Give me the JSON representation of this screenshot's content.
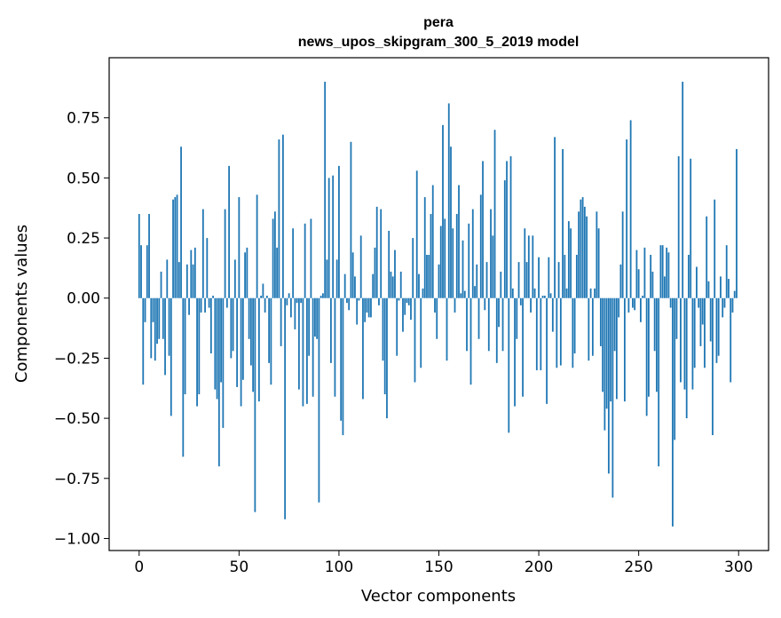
{
  "chart_data": {
    "type": "bar",
    "title_line1": "pera",
    "title_line2": "news_upos_skipgram_300_5_2019 model",
    "xlabel": "Vector components",
    "ylabel": "Components values",
    "xlim": [
      -15,
      315
    ],
    "ylim": [
      -1.05,
      1.0
    ],
    "xticks": [
      0,
      50,
      100,
      150,
      200,
      250,
      300
    ],
    "xtick_labels": [
      "0",
      "50",
      "100",
      "150",
      "200",
      "250",
      "300"
    ],
    "yticks": [
      -1.0,
      -0.75,
      -0.5,
      -0.25,
      0.0,
      0.25,
      0.5,
      0.75
    ],
    "ytick_labels": [
      "−1.00",
      "−0.75",
      "−0.50",
      "−0.25",
      "0.00",
      "0.25",
      "0.50",
      "0.75"
    ],
    "bar_color": "#1f77b4",
    "values": [
      0.35,
      0.22,
      -0.36,
      -0.1,
      0.22,
      0.35,
      -0.25,
      -0.1,
      -0.26,
      -0.19,
      -0.17,
      0.11,
      -0.17,
      -0.32,
      0.16,
      -0.24,
      -0.49,
      0.41,
      0.42,
      0.43,
      0.15,
      0.63,
      -0.66,
      -0.4,
      0.14,
      -0.07,
      0.2,
      0.14,
      0.21,
      -0.45,
      -0.4,
      -0.06,
      0.37,
      -0.06,
      0.25,
      -0.04,
      -0.23,
      0.01,
      -0.38,
      -0.42,
      -0.7,
      -0.35,
      -0.54,
      0.37,
      -0.04,
      0.55,
      -0.25,
      -0.22,
      0.16,
      -0.37,
      0.42,
      -0.45,
      -0.34,
      0.19,
      0.21,
      -0.17,
      -0.28,
      -0.39,
      -0.89,
      0.43,
      -0.43,
      0.01,
      0.06,
      -0.06,
      0.01,
      -0.27,
      -0.36,
      0.33,
      0.36,
      0.21,
      0.66,
      -0.2,
      0.68,
      -0.92,
      -0.03,
      0.02,
      -0.08,
      0.29,
      -0.13,
      -0.02,
      -0.38,
      -0.02,
      -0.45,
      0.31,
      -0.44,
      -0.24,
      0.33,
      -0.41,
      -0.16,
      -0.17,
      -0.85,
      0.01,
      0.02,
      0.9,
      0.16,
      0.5,
      -0.27,
      0.51,
      -0.41,
      0.16,
      0.55,
      -0.51,
      -0.57,
      0.1,
      -0.02,
      -0.05,
      0.65,
      0.19,
      0.09,
      -0.11,
      -0.01,
      0.26,
      -0.42,
      -0.1,
      -0.06,
      -0.08,
      -0.08,
      0.1,
      0.21,
      0.38,
      -0.03,
      0.37,
      -0.26,
      -0.4,
      -0.5,
      0.28,
      0.11,
      0.09,
      0.2,
      -0.24,
      -0.01,
      0.11,
      -0.14,
      -0.07,
      -0.02,
      -0.03,
      -0.09,
      0.25,
      -0.35,
      0.53,
      0.1,
      -0.29,
      0.04,
      0.42,
      0.18,
      0.18,
      0.35,
      0.47,
      -0.06,
      -0.17,
      0.14,
      0.3,
      0.72,
      0.33,
      -0.26,
      0.81,
      0.63,
      0.29,
      -0.06,
      0.35,
      0.47,
      0.02,
      0.24,
      0.03,
      -0.22,
      0.31,
      -0.36,
      0.37,
      0.05,
      0.14,
      -0.17,
      0.43,
      0.57,
      -0.05,
      0.15,
      -0.22,
      0.37,
      0.26,
      0.7,
      -0.27,
      -0.12,
      0.11,
      -0.22,
      0.49,
      0.57,
      -0.56,
      0.59,
      0.04,
      -0.45,
      -0.17,
      0.15,
      -0.03,
      -0.41,
      0.29,
      0.15,
      0.26,
      -0.06,
      0.26,
      0.04,
      -0.3,
      0.17,
      -0.3,
      0.01,
      0.01,
      -0.44,
      0.17,
      0.02,
      -0.14,
      0.67,
      -0.29,
      0.15,
      -0.28,
      0.62,
      0.18,
      0.04,
      0.32,
      0.29,
      -0.29,
      -0.23,
      0.18,
      0.36,
      0.41,
      0.42,
      0.38,
      0.34,
      -0.26,
      0.04,
      -0.24,
      0.04,
      0.36,
      0.29,
      -0.2,
      -0.39,
      -0.55,
      -0.46,
      -0.73,
      -0.43,
      -0.83,
      -0.22,
      -0.42,
      -0.08,
      0.14,
      0.36,
      -0.43,
      0.66,
      -0.06,
      0.74,
      -0.04,
      -0.05,
      0.2,
      0.12,
      -0.1,
      0.01,
      0.21,
      -0.49,
      -0.41,
      0.18,
      0.11,
      -0.22,
      -0.39,
      -0.7,
      0.22,
      0.22,
      0.09,
      0.21,
      0.19,
      -0.04,
      -0.95,
      -0.59,
      -0.17,
      0.59,
      -0.35,
      0.9,
      -0.38,
      -0.5,
      0.18,
      0.58,
      -0.38,
      -0.29,
      0.13,
      -0.04,
      -0.2,
      -0.11,
      -0.29,
      0.34,
      0.07,
      -0.18,
      -0.57,
      0.41,
      -0.27,
      -0.24,
      0.09,
      -0.08,
      -0.04,
      0.22,
      0.08,
      -0.35,
      -0.06,
      0.03,
      0.62
    ]
  }
}
